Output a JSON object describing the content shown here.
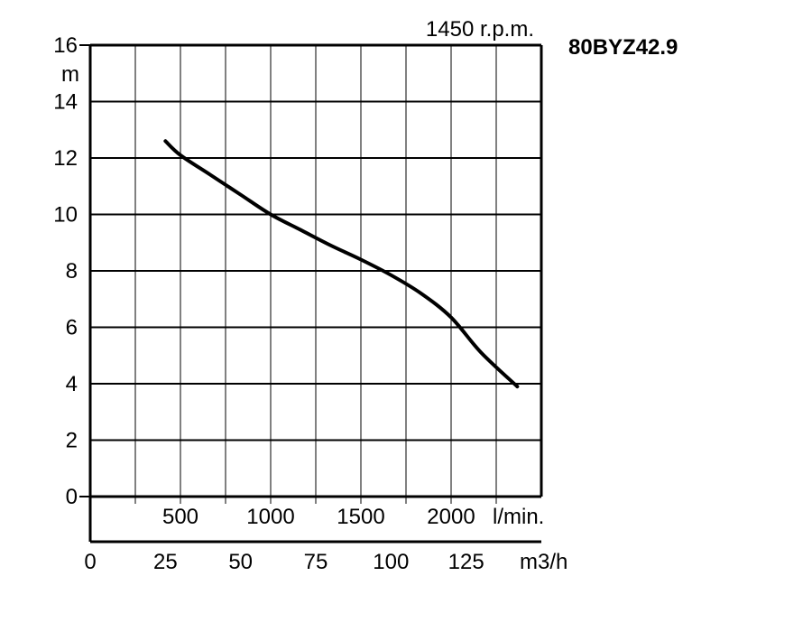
{
  "chart_data": {
    "type": "line",
    "model": "80BYZ42.9",
    "speed_label": "1450 r.p.m.",
    "ylabel": "m",
    "ylim": [
      0,
      16
    ],
    "y_ticks": [
      "0",
      "2",
      "4",
      "6",
      "8",
      "10",
      "12",
      "14",
      "16"
    ],
    "x_lpm_ticks": [
      {
        "value": 500,
        "label": "500"
      },
      {
        "value": 1000,
        "label": "1000"
      },
      {
        "value": 1500,
        "label": "1500"
      },
      {
        "value": 2000,
        "label": "2000"
      }
    ],
    "x_lpm_unit": "l/min.",
    "x_m3h_ticks": [
      "0",
      "25",
      "50",
      "75",
      "100",
      "125"
    ],
    "x_m3h_unit": "m3/h",
    "xlim_m3h": [
      0,
      150
    ],
    "grid": true,
    "series": [
      {
        "x_m3h": [
          25,
          30,
          40,
          50,
          60,
          70,
          80,
          90,
          100,
          110,
          120,
          130,
          142
        ],
        "y": [
          12.6,
          12.1,
          11.4,
          10.7,
          10.0,
          9.45,
          8.9,
          8.4,
          7.85,
          7.2,
          6.35,
          5.1,
          3.9
        ]
      }
    ]
  }
}
